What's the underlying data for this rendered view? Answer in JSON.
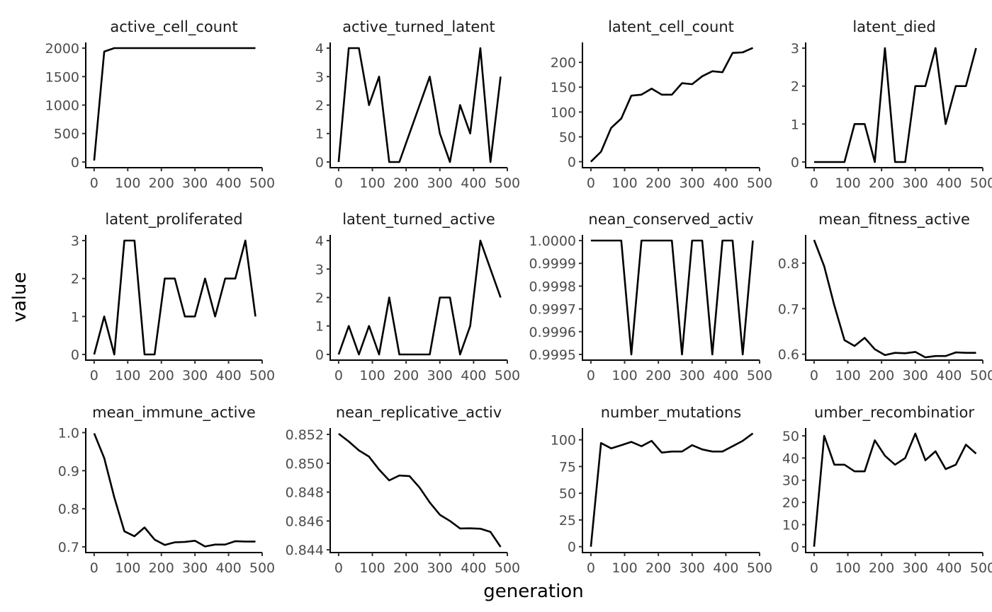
{
  "xlabel": "generation",
  "ylabel": "value",
  "chart_data": [
    {
      "type": "line",
      "title": "active_cell_count",
      "title_clip": "active_cell_count",
      "x": [
        0,
        30,
        60,
        90,
        120,
        150,
        180,
        210,
        240,
        270,
        300,
        330,
        360,
        390,
        420,
        450,
        480
      ],
      "values": [
        25,
        1940,
        2000,
        2000,
        2000,
        2000,
        2000,
        2000,
        2000,
        2000,
        2000,
        2000,
        2000,
        2000,
        2000,
        2000,
        2000
      ],
      "xlim": [
        -25,
        500
      ],
      "ylim": [
        -100,
        2100
      ],
      "xticks": [
        0,
        100,
        200,
        300,
        400,
        500
      ],
      "xtick_labels": [
        "0",
        "100",
        "200",
        "300",
        "400",
        "500"
      ],
      "yticks": [
        0,
        500,
        1000,
        1500,
        2000
      ],
      "ytick_labels": [
        "0",
        "500",
        "1000",
        "1500",
        "2000"
      ]
    },
    {
      "type": "line",
      "title": "active_turned_latent",
      "title_clip": "active_turned_latent",
      "x": [
        0,
        30,
        60,
        90,
        120,
        150,
        180,
        210,
        240,
        270,
        300,
        330,
        360,
        390,
        420,
        450,
        480
      ],
      "values": [
        0,
        4,
        4,
        2,
        3,
        0,
        0,
        1,
        2,
        3,
        1,
        0,
        2,
        1,
        4,
        0,
        3
      ],
      "xlim": [
        -25,
        500
      ],
      "ylim": [
        -0.2,
        4.2
      ],
      "xticks": [
        0,
        100,
        200,
        300,
        400,
        500
      ],
      "xtick_labels": [
        "0",
        "100",
        "200",
        "300",
        "400",
        "500"
      ],
      "yticks": [
        0,
        1,
        2,
        3,
        4
      ],
      "ytick_labels": [
        "0",
        "1",
        "2",
        "3",
        "4"
      ]
    },
    {
      "type": "line",
      "title": "latent_cell_count",
      "title_clip": "latent_cell_count",
      "x": [
        0,
        30,
        60,
        90,
        120,
        150,
        180,
        210,
        240,
        270,
        300,
        330,
        360,
        390,
        420,
        450,
        480
      ],
      "values": [
        0,
        20,
        68,
        87,
        133,
        135,
        147,
        135,
        135,
        158,
        156,
        172,
        182,
        180,
        219,
        220,
        229
      ],
      "xlim": [
        -25,
        500
      ],
      "ylim": [
        -12,
        240
      ],
      "xticks": [
        0,
        100,
        200,
        300,
        400,
        500
      ],
      "xtick_labels": [
        "0",
        "100",
        "200",
        "300",
        "400",
        "500"
      ],
      "yticks": [
        0,
        50,
        100,
        150,
        200
      ],
      "ytick_labels": [
        "0",
        "50",
        "100",
        "150",
        "200"
      ]
    },
    {
      "type": "line",
      "title": "latent_died",
      "title_clip": "latent_died",
      "x": [
        0,
        30,
        60,
        90,
        120,
        150,
        180,
        210,
        240,
        270,
        300,
        330,
        360,
        390,
        420,
        450,
        480
      ],
      "values": [
        0,
        0,
        0,
        0,
        1,
        1,
        0,
        3,
        0,
        0,
        2,
        2,
        3,
        1,
        2,
        2,
        3
      ],
      "xlim": [
        -25,
        500
      ],
      "ylim": [
        -0.15,
        3.15
      ],
      "xticks": [
        0,
        100,
        200,
        300,
        400,
        500
      ],
      "xtick_labels": [
        "0",
        "100",
        "200",
        "300",
        "400",
        "500"
      ],
      "yticks": [
        0,
        1,
        2,
        3
      ],
      "ytick_labels": [
        "0",
        "1",
        "2",
        "3"
      ]
    },
    {
      "type": "line",
      "title": "latent_proliferated",
      "title_clip": "latent_proliferated",
      "x": [
        0,
        30,
        60,
        90,
        120,
        150,
        180,
        210,
        240,
        270,
        300,
        330,
        360,
        390,
        420,
        450,
        480
      ],
      "values": [
        0,
        1,
        0,
        3,
        3,
        0,
        0,
        2,
        2,
        1,
        1,
        2,
        1,
        2,
        2,
        3,
        1
      ],
      "xlim": [
        -25,
        500
      ],
      "ylim": [
        -0.15,
        3.15
      ],
      "xticks": [
        0,
        100,
        200,
        300,
        400,
        500
      ],
      "xtick_labels": [
        "0",
        "100",
        "200",
        "300",
        "400",
        "500"
      ],
      "yticks": [
        0,
        1,
        2,
        3
      ],
      "ytick_labels": [
        "0",
        "1",
        "2",
        "3"
      ]
    },
    {
      "type": "line",
      "title": "latent_turned_active",
      "title_clip": "latent_turned_active",
      "x": [
        0,
        30,
        60,
        90,
        120,
        150,
        180,
        210,
        240,
        270,
        300,
        330,
        360,
        390,
        420,
        450,
        480
      ],
      "values": [
        0,
        1,
        0,
        1,
        0,
        2,
        0,
        0,
        0,
        0,
        2,
        2,
        0,
        1,
        4,
        3,
        2
      ],
      "xlim": [
        -25,
        500
      ],
      "ylim": [
        -0.2,
        4.2
      ],
      "xticks": [
        0,
        100,
        200,
        300,
        400,
        500
      ],
      "xtick_labels": [
        "0",
        "100",
        "200",
        "300",
        "400",
        "500"
      ],
      "yticks": [
        0,
        1,
        2,
        3,
        4
      ],
      "ytick_labels": [
        "0",
        "1",
        "2",
        "3",
        "4"
      ]
    },
    {
      "type": "line",
      "title": "mean_conserved_active",
      "title_clip": "nean_conserved_activ",
      "x": [
        0,
        30,
        60,
        90,
        120,
        150,
        180,
        210,
        240,
        270,
        300,
        330,
        360,
        390,
        420,
        450,
        480
      ],
      "values": [
        1.0,
        1.0,
        1.0,
        1.0,
        0.9995,
        1.0,
        1.0,
        1.0,
        1.0,
        0.9995,
        1.0,
        1.0,
        0.9995,
        1.0,
        1.0,
        0.9995,
        1.0
      ],
      "xlim": [
        -25,
        500
      ],
      "ylim": [
        0.999475,
        1.000025
      ],
      "xticks": [
        0,
        100,
        200,
        300,
        400,
        500
      ],
      "xtick_labels": [
        "0",
        "100",
        "200",
        "300",
        "400",
        "500"
      ],
      "yticks": [
        0.9995,
        0.9996,
        0.9997,
        0.9998,
        0.9999,
        1.0
      ],
      "ytick_labels": [
        "0.9995",
        "0.9996",
        "0.9997",
        "0.9998",
        "0.9999",
        "1.0000"
      ]
    },
    {
      "type": "line",
      "title": "mean_fitness_active",
      "title_clip": "mean_fitness_active",
      "x": [
        0,
        30,
        60,
        90,
        120,
        150,
        180,
        210,
        240,
        270,
        300,
        330,
        360,
        390,
        420,
        450,
        480
      ],
      "values": [
        0.851,
        0.793,
        0.707,
        0.631,
        0.618,
        0.636,
        0.611,
        0.598,
        0.603,
        0.602,
        0.605,
        0.593,
        0.596,
        0.596,
        0.604,
        0.603,
        0.603
      ],
      "xlim": [
        -25,
        500
      ],
      "ylim": [
        0.587,
        0.862
      ],
      "xticks": [
        0,
        100,
        200,
        300,
        400,
        500
      ],
      "xtick_labels": [
        "0",
        "100",
        "200",
        "300",
        "400",
        "500"
      ],
      "yticks": [
        0.6,
        0.7,
        0.8
      ],
      "ytick_labels": [
        "0.6",
        "0.7",
        "0.8"
      ]
    },
    {
      "type": "line",
      "title": "mean_immune_active",
      "title_clip": "mean_immune_active",
      "x": [
        0,
        30,
        60,
        90,
        120,
        150,
        180,
        210,
        240,
        270,
        300,
        330,
        360,
        390,
        420,
        450,
        480
      ],
      "values": [
        0.998,
        0.933,
        0.83,
        0.741,
        0.728,
        0.751,
        0.719,
        0.705,
        0.712,
        0.713,
        0.716,
        0.701,
        0.706,
        0.706,
        0.715,
        0.714,
        0.714
      ],
      "xlim": [
        -25,
        500
      ],
      "ylim": [
        0.685,
        1.012
      ],
      "xticks": [
        0,
        100,
        200,
        300,
        400,
        500
      ],
      "xtick_labels": [
        "0",
        "100",
        "200",
        "300",
        "400",
        "500"
      ],
      "yticks": [
        0.7,
        0.8,
        0.9,
        1.0
      ],
      "ytick_labels": [
        "0.7",
        "0.8",
        "0.9",
        "1.0"
      ]
    },
    {
      "type": "line",
      "title": "mean_replicative_active",
      "title_clip": "nean_replicative_activ",
      "x": [
        0,
        30,
        60,
        90,
        120,
        150,
        180,
        210,
        240,
        270,
        300,
        330,
        360,
        390,
        420,
        450,
        480
      ],
      "values": [
        0.85205,
        0.85151,
        0.85089,
        0.85046,
        0.84956,
        0.84881,
        0.84915,
        0.84911,
        0.84831,
        0.84728,
        0.84643,
        0.846,
        0.84548,
        0.84549,
        0.84546,
        0.84524,
        0.8442
      ],
      "xlim": [
        -25,
        500
      ],
      "ylim": [
        0.84381,
        0.85244
      ],
      "xticks": [
        0,
        100,
        200,
        300,
        400,
        500
      ],
      "xtick_labels": [
        "0",
        "100",
        "200",
        "300",
        "400",
        "500"
      ],
      "yticks": [
        0.844,
        0.846,
        0.848,
        0.85,
        0.852
      ],
      "ytick_labels": [
        "0.844",
        "0.846",
        "0.848",
        "0.850",
        "0.852"
      ]
    },
    {
      "type": "line",
      "title": "number_mutations",
      "title_clip": "number_mutations",
      "x": [
        0,
        30,
        60,
        90,
        120,
        150,
        180,
        210,
        240,
        270,
        300,
        330,
        360,
        390,
        420,
        450,
        480
      ],
      "values": [
        0,
        97,
        92,
        95,
        98,
        94,
        99,
        88,
        89,
        89,
        95,
        91,
        89,
        89,
        94,
        99,
        106
      ],
      "xlim": [
        -25,
        500
      ],
      "ylim": [
        -5.5,
        111
      ],
      "xticks": [
        0,
        100,
        200,
        300,
        400,
        500
      ],
      "xtick_labels": [
        "0",
        "100",
        "200",
        "300",
        "400",
        "500"
      ],
      "yticks": [
        0,
        25,
        50,
        75,
        100
      ],
      "ytick_labels": [
        "0",
        "25",
        "50",
        "75",
        "100"
      ]
    },
    {
      "type": "line",
      "title": "number_recombinations",
      "title_clip": "umber_recombinatior",
      "x": [
        0,
        30,
        60,
        90,
        120,
        150,
        180,
        210,
        240,
        270,
        300,
        330,
        360,
        390,
        420,
        450,
        480
      ],
      "values": [
        0,
        50,
        37,
        37,
        34,
        34,
        48,
        41,
        37,
        40,
        51,
        39,
        43,
        35,
        37,
        46,
        42
      ],
      "xlim": [
        -25,
        500
      ],
      "ylim": [
        -2.6,
        53.5
      ],
      "xticks": [
        0,
        100,
        200,
        300,
        400,
        500
      ],
      "xtick_labels": [
        "0",
        "100",
        "200",
        "300",
        "400",
        "500"
      ],
      "yticks": [
        0,
        10,
        20,
        30,
        40,
        50
      ],
      "ytick_labels": [
        "0",
        "10",
        "20",
        "30",
        "40",
        "50"
      ]
    }
  ]
}
